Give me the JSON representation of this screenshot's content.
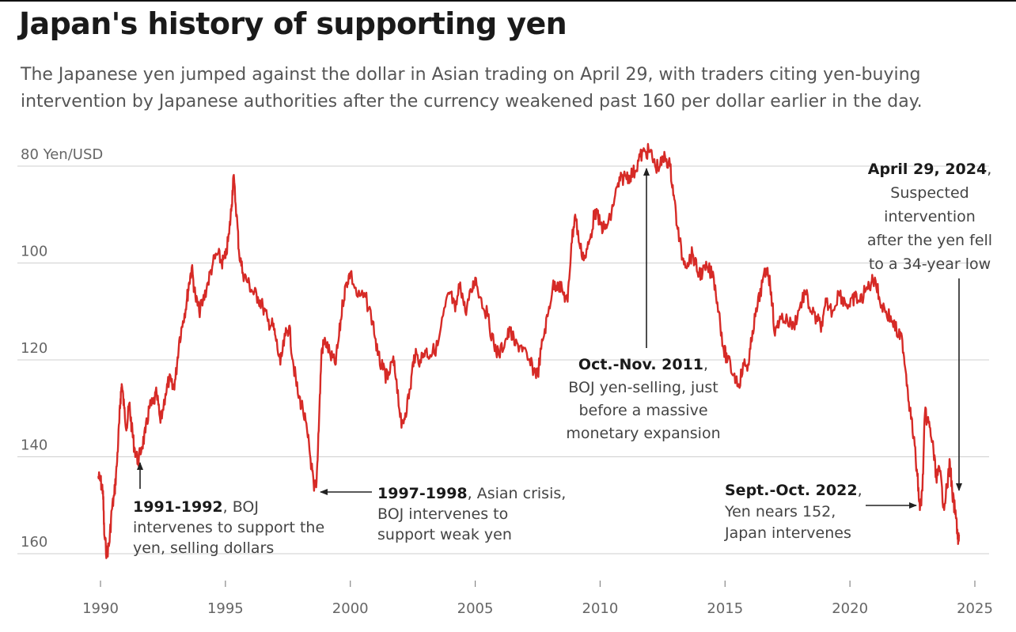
{
  "title": "Japan's history of supporting yen",
  "subtitle": "The Japanese yen jumped against the dollar in Asian trading on April 29, with traders citing yen-buying intervention by Japanese authorities after the currency weakened past 160 per dollar earlier in the day.",
  "colors": {
    "line": "#d62a26",
    "grid": "#cfcfcf",
    "axis_text": "#666666",
    "annotation_text": "#444444",
    "arrow": "#222222"
  },
  "chart_data": {
    "type": "line",
    "title": "Japan's history of supporting yen",
    "xlabel": "",
    "ylabel": "Yen/USD",
    "y_inverted": true,
    "grid": "horizontal",
    "xlim": [
      1990,
      2025
    ],
    "ylim": [
      160,
      80
    ],
    "x_ticks": [
      {
        "value": 1990,
        "label": "1990"
      },
      {
        "value": 1995,
        "label": "1995"
      },
      {
        "value": 2000,
        "label": "2000"
      },
      {
        "value": 2005,
        "label": "2005"
      },
      {
        "value": 2010,
        "label": "2010"
      },
      {
        "value": 2015,
        "label": "2015"
      },
      {
        "value": 2020,
        "label": "2020"
      },
      {
        "value": 2025,
        "label": "2025"
      }
    ],
    "y_ticks": [
      {
        "value": 80,
        "label": "80 Yen/USD"
      },
      {
        "value": 100,
        "label": "100"
      },
      {
        "value": 120,
        "label": "120"
      },
      {
        "value": 140,
        "label": "140"
      },
      {
        "value": 160,
        "label": "160"
      }
    ],
    "series": [
      {
        "values": [
          [
            1989.9,
            144
          ],
          [
            1990.0,
            145
          ],
          [
            1990.1,
            147
          ],
          [
            1990.15,
            156
          ],
          [
            1990.25,
            160
          ],
          [
            1990.35,
            158
          ],
          [
            1990.45,
            151
          ],
          [
            1990.55,
            148
          ],
          [
            1990.65,
            142
          ],
          [
            1990.75,
            133
          ],
          [
            1990.8,
            128
          ],
          [
            1990.85,
            125
          ],
          [
            1990.95,
            130
          ],
          [
            1991.05,
            134
          ],
          [
            1991.15,
            129
          ],
          [
            1991.25,
            134
          ],
          [
            1991.35,
            138
          ],
          [
            1991.5,
            141
          ],
          [
            1991.65,
            138
          ],
          [
            1991.8,
            135
          ],
          [
            1991.95,
            130
          ],
          [
            1992.1,
            129
          ],
          [
            1992.25,
            127
          ],
          [
            1992.4,
            133
          ],
          [
            1992.6,
            127
          ],
          [
            1992.75,
            124
          ],
          [
            1992.9,
            126
          ],
          [
            1993.0,
            124
          ],
          [
            1993.15,
            116
          ],
          [
            1993.3,
            112
          ],
          [
            1993.45,
            108
          ],
          [
            1993.55,
            104
          ],
          [
            1993.65,
            101
          ],
          [
            1993.8,
            107
          ],
          [
            1993.95,
            110
          ],
          [
            1994.1,
            108
          ],
          [
            1994.3,
            104
          ],
          [
            1994.5,
            100
          ],
          [
            1994.7,
            98
          ],
          [
            1994.85,
            100
          ],
          [
            1995.0,
            99
          ],
          [
            1995.15,
            94
          ],
          [
            1995.25,
            88
          ],
          [
            1995.32,
            82
          ],
          [
            1995.45,
            90
          ],
          [
            1995.55,
            98
          ],
          [
            1995.7,
            102
          ],
          [
            1995.9,
            104
          ],
          [
            1996.1,
            106
          ],
          [
            1996.3,
            107
          ],
          [
            1996.5,
            109
          ],
          [
            1996.7,
            112
          ],
          [
            1996.9,
            113
          ],
          [
            1997.0,
            115
          ],
          [
            1997.2,
            121
          ],
          [
            1997.4,
            115
          ],
          [
            1997.55,
            113
          ],
          [
            1997.7,
            120
          ],
          [
            1997.9,
            127
          ],
          [
            1998.1,
            130
          ],
          [
            1998.3,
            136
          ],
          [
            1998.45,
            142
          ],
          [
            1998.55,
            147
          ],
          [
            1998.65,
            145
          ],
          [
            1998.75,
            132
          ],
          [
            1998.85,
            118
          ],
          [
            1999.0,
            116
          ],
          [
            1999.2,
            119
          ],
          [
            1999.4,
            121
          ],
          [
            1999.55,
            115
          ],
          [
            1999.7,
            108
          ],
          [
            1999.85,
            104
          ],
          [
            2000.0,
            102
          ],
          [
            2000.3,
            107
          ],
          [
            2000.6,
            107
          ],
          [
            2000.9,
            112
          ],
          [
            2001.1,
            119
          ],
          [
            2001.3,
            122
          ],
          [
            2001.5,
            124
          ],
          [
            2001.7,
            120
          ],
          [
            2001.85,
            124
          ],
          [
            2002.05,
            134
          ],
          [
            2002.2,
            131
          ],
          [
            2002.4,
            126
          ],
          [
            2002.55,
            119
          ],
          [
            2002.8,
            120
          ],
          [
            2003.0,
            118
          ],
          [
            2003.2,
            119
          ],
          [
            2003.5,
            117
          ],
          [
            2003.8,
            109
          ],
          [
            2004.0,
            106
          ],
          [
            2004.2,
            110
          ],
          [
            2004.4,
            104
          ],
          [
            2004.6,
            110
          ],
          [
            2004.85,
            106
          ],
          [
            2005.0,
            103
          ],
          [
            2005.2,
            107
          ],
          [
            2005.5,
            111
          ],
          [
            2005.75,
            117
          ],
          [
            2005.95,
            119
          ],
          [
            2006.2,
            116
          ],
          [
            2006.4,
            114
          ],
          [
            2006.6,
            117
          ],
          [
            2006.85,
            117
          ],
          [
            2007.1,
            120
          ],
          [
            2007.35,
            122
          ],
          [
            2007.5,
            123
          ],
          [
            2007.7,
            116
          ],
          [
            2007.9,
            111
          ],
          [
            2008.1,
            105
          ],
          [
            2008.3,
            104
          ],
          [
            2008.5,
            106
          ],
          [
            2008.7,
            108
          ],
          [
            2008.85,
            96
          ],
          [
            2009.0,
            90
          ],
          [
            2009.2,
            97
          ],
          [
            2009.4,
            99
          ],
          [
            2009.6,
            95
          ],
          [
            2009.8,
            89
          ],
          [
            2010.0,
            92
          ],
          [
            2010.2,
            93
          ],
          [
            2010.4,
            91
          ],
          [
            2010.6,
            86
          ],
          [
            2010.8,
            83
          ],
          [
            2011.0,
            82
          ],
          [
            2011.2,
            82
          ],
          [
            2011.4,
            81
          ],
          [
            2011.6,
            78
          ],
          [
            2011.8,
            77
          ],
          [
            2012.0,
            77
          ],
          [
            2012.2,
            80
          ],
          [
            2012.4,
            80
          ],
          [
            2012.6,
            78
          ],
          [
            2012.8,
            80
          ],
          [
            2012.95,
            86
          ],
          [
            2013.1,
            93
          ],
          [
            2013.3,
            99
          ],
          [
            2013.5,
            100
          ],
          [
            2013.7,
            98
          ],
          [
            2013.9,
            102
          ],
          [
            2014.1,
            102
          ],
          [
            2014.3,
            101
          ],
          [
            2014.55,
            103
          ],
          [
            2014.75,
            110
          ],
          [
            2014.95,
            118
          ],
          [
            2015.1,
            120
          ],
          [
            2015.35,
            123
          ],
          [
            2015.55,
            125
          ],
          [
            2015.75,
            121
          ],
          [
            2015.95,
            121
          ],
          [
            2016.1,
            114
          ],
          [
            2016.3,
            109
          ],
          [
            2016.5,
            104
          ],
          [
            2016.7,
            101
          ],
          [
            2016.85,
            106
          ],
          [
            2017.0,
            115
          ],
          [
            2017.2,
            111
          ],
          [
            2017.5,
            112
          ],
          [
            2017.75,
            113
          ],
          [
            2018.0,
            109
          ],
          [
            2018.2,
            106
          ],
          [
            2018.45,
            110
          ],
          [
            2018.7,
            112
          ],
          [
            2018.9,
            113
          ],
          [
            2019.05,
            108
          ],
          [
            2019.3,
            110
          ],
          [
            2019.55,
            106
          ],
          [
            2019.8,
            108
          ],
          [
            2020.0,
            109
          ],
          [
            2020.2,
            107
          ],
          [
            2020.4,
            108
          ],
          [
            2020.6,
            106
          ],
          [
            2020.85,
            104
          ],
          [
            2021.0,
            103
          ],
          [
            2021.2,
            108
          ],
          [
            2021.45,
            110
          ],
          [
            2021.7,
            112
          ],
          [
            2021.95,
            115
          ],
          [
            2022.1,
            116
          ],
          [
            2022.25,
            123
          ],
          [
            2022.4,
            130
          ],
          [
            2022.55,
            136
          ],
          [
            2022.7,
            144
          ],
          [
            2022.8,
            151
          ],
          [
            2022.9,
            147
          ],
          [
            2023.0,
            131
          ],
          [
            2023.15,
            133
          ],
          [
            2023.3,
            137
          ],
          [
            2023.45,
            144
          ],
          [
            2023.6,
            143
          ],
          [
            2023.75,
            150
          ],
          [
            2023.9,
            146
          ],
          [
            2024.0,
            141
          ],
          [
            2024.1,
            148
          ],
          [
            2024.2,
            151
          ],
          [
            2024.3,
            155
          ],
          [
            2024.33,
            158
          ],
          [
            2024.37,
            156
          ]
        ]
      }
    ],
    "annotations": [
      {
        "bold": "1991-1992",
        "lines": [
          ", BOJ",
          "intervenes to support the",
          "yen, selling dollars"
        ]
      },
      {
        "bold": "1997-1998",
        "lines": [
          ", Asian crisis,",
          "BOJ intervenes to",
          "support weak yen"
        ]
      },
      {
        "bold": "Oct.-Nov. 2011",
        "lines": [
          ",",
          "BOJ yen-selling, just",
          "before a massive",
          "monetary expansion"
        ]
      },
      {
        "bold": "Sept.-Oct. 2022",
        "lines": [
          ",",
          "Yen nears 152,",
          "Japan intervenes"
        ]
      },
      {
        "bold": "April 29, 2024",
        "lines": [
          ",",
          "Suspected",
          "intervention",
          "after the yen fell",
          "to a 34-year low"
        ]
      }
    ]
  }
}
